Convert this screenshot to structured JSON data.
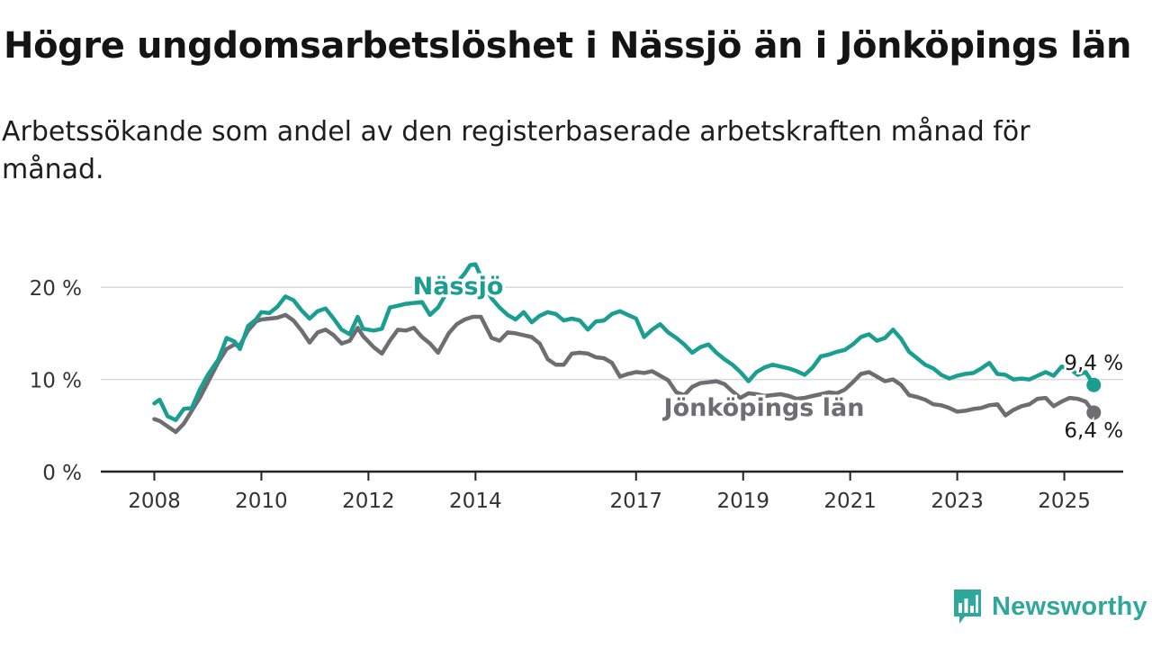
{
  "chart_data": {
    "type": "line",
    "title": "Högre ungdomsarbetslöshet i Nässjö än i Jönköpings län",
    "subtitle": "Arbetssökande som andel av den registerbaserade arbetskraften månad för månad.",
    "x_ticks": [
      "2008",
      "2010",
      "2012",
      "2014",
      "2017",
      "2019",
      "2021",
      "2023",
      "2025"
    ],
    "y_ticks": [
      "0 %",
      "10 %",
      "20 %"
    ],
    "ylim": [
      0,
      25
    ],
    "xlim": [
      2007.0,
      2026.1
    ],
    "grid": "horizontal",
    "series": [
      {
        "name": "Nässjö",
        "color": "#1a9e92",
        "end_label": "9,4 %",
        "points": [
          [
            2008.0,
            7.4
          ],
          [
            2008.1,
            7.8
          ],
          [
            2008.25,
            6.0
          ],
          [
            2008.4,
            5.6
          ],
          [
            2008.55,
            6.8
          ],
          [
            2008.7,
            6.9
          ],
          [
            2008.85,
            8.9
          ],
          [
            2009.0,
            10.5
          ],
          [
            2009.2,
            12.2
          ],
          [
            2009.35,
            14.5
          ],
          [
            2009.5,
            14.1
          ],
          [
            2009.6,
            13.3
          ],
          [
            2009.75,
            15.8
          ],
          [
            2009.9,
            16.5
          ],
          [
            2010.0,
            17.3
          ],
          [
            2010.15,
            17.2
          ],
          [
            2010.3,
            17.9
          ],
          [
            2010.45,
            19.0
          ],
          [
            2010.6,
            18.6
          ],
          [
            2010.75,
            17.5
          ],
          [
            2010.9,
            16.6
          ],
          [
            2011.05,
            17.4
          ],
          [
            2011.2,
            17.7
          ],
          [
            2011.35,
            16.6
          ],
          [
            2011.5,
            15.4
          ],
          [
            2011.65,
            14.9
          ],
          [
            2011.8,
            16.8
          ],
          [
            2011.9,
            15.5
          ],
          [
            2012.1,
            15.3
          ],
          [
            2012.25,
            15.5
          ],
          [
            2012.4,
            17.8
          ],
          [
            2012.55,
            18.0
          ],
          [
            2012.7,
            18.2
          ],
          [
            2012.85,
            18.3
          ],
          [
            2013.0,
            18.4
          ],
          [
            2013.15,
            17.0
          ],
          [
            2013.3,
            17.8
          ],
          [
            2013.5,
            19.8
          ],
          [
            2013.65,
            20.5
          ],
          [
            2013.8,
            21.5
          ],
          [
            2013.9,
            22.4
          ],
          [
            2014.0,
            22.5
          ],
          [
            2014.15,
            20.5
          ],
          [
            2014.3,
            18.8
          ],
          [
            2014.45,
            17.8
          ],
          [
            2014.6,
            17.0
          ],
          [
            2014.75,
            16.5
          ],
          [
            2014.9,
            17.3
          ],
          [
            2015.05,
            16.2
          ],
          [
            2015.2,
            16.9
          ],
          [
            2015.35,
            17.3
          ],
          [
            2015.5,
            17.1
          ],
          [
            2015.65,
            16.4
          ],
          [
            2015.8,
            16.6
          ],
          [
            2015.95,
            16.4
          ],
          [
            2016.1,
            15.4
          ],
          [
            2016.25,
            16.3
          ],
          [
            2016.4,
            16.4
          ],
          [
            2016.55,
            17.1
          ],
          [
            2016.7,
            17.4
          ],
          [
            2016.85,
            17.0
          ],
          [
            2017.0,
            16.6
          ],
          [
            2017.15,
            14.6
          ],
          [
            2017.3,
            15.4
          ],
          [
            2017.45,
            16.0
          ],
          [
            2017.6,
            15.1
          ],
          [
            2017.75,
            14.5
          ],
          [
            2017.9,
            13.8
          ],
          [
            2018.05,
            12.9
          ],
          [
            2018.2,
            13.5
          ],
          [
            2018.35,
            13.8
          ],
          [
            2018.5,
            12.9
          ],
          [
            2018.65,
            12.2
          ],
          [
            2018.8,
            11.6
          ],
          [
            2018.95,
            10.8
          ],
          [
            2019.1,
            9.8
          ],
          [
            2019.25,
            10.8
          ],
          [
            2019.4,
            11.3
          ],
          [
            2019.55,
            11.6
          ],
          [
            2019.7,
            11.4
          ],
          [
            2019.85,
            11.2
          ],
          [
            2020.0,
            10.9
          ],
          [
            2020.15,
            10.5
          ],
          [
            2020.3,
            11.3
          ],
          [
            2020.45,
            12.5
          ],
          [
            2020.6,
            12.7
          ],
          [
            2020.75,
            13.0
          ],
          [
            2020.9,
            13.2
          ],
          [
            2021.05,
            13.8
          ],
          [
            2021.2,
            14.6
          ],
          [
            2021.35,
            14.9
          ],
          [
            2021.5,
            14.2
          ],
          [
            2021.65,
            14.5
          ],
          [
            2021.8,
            15.4
          ],
          [
            2021.95,
            14.4
          ],
          [
            2022.1,
            13.0
          ],
          [
            2022.25,
            12.3
          ],
          [
            2022.4,
            11.6
          ],
          [
            2022.55,
            11.2
          ],
          [
            2022.7,
            10.5
          ],
          [
            2022.85,
            10.1
          ],
          [
            2023.0,
            10.4
          ],
          [
            2023.15,
            10.6
          ],
          [
            2023.3,
            10.7
          ],
          [
            2023.45,
            11.2
          ],
          [
            2023.6,
            11.8
          ],
          [
            2023.75,
            10.6
          ],
          [
            2023.9,
            10.5
          ],
          [
            2024.05,
            10.0
          ],
          [
            2024.2,
            10.1
          ],
          [
            2024.35,
            10.0
          ],
          [
            2024.5,
            10.4
          ],
          [
            2024.65,
            10.8
          ],
          [
            2024.8,
            10.4
          ],
          [
            2024.95,
            11.4
          ],
          [
            2025.1,
            11.2
          ],
          [
            2025.25,
            10.5
          ],
          [
            2025.4,
            10.8
          ],
          [
            2025.55,
            9.4
          ]
        ]
      },
      {
        "name": "Jönköpings län",
        "color": "#6e6e72",
        "end_label": "6,4 %",
        "points": [
          [
            2008.0,
            5.7
          ],
          [
            2008.1,
            5.5
          ],
          [
            2008.25,
            4.9
          ],
          [
            2008.4,
            4.3
          ],
          [
            2008.55,
            5.2
          ],
          [
            2008.7,
            6.6
          ],
          [
            2008.85,
            8.0
          ],
          [
            2009.0,
            9.7
          ],
          [
            2009.2,
            11.9
          ],
          [
            2009.35,
            13.3
          ],
          [
            2009.5,
            13.8
          ],
          [
            2009.6,
            13.7
          ],
          [
            2009.75,
            15.3
          ],
          [
            2009.9,
            16.3
          ],
          [
            2010.0,
            16.5
          ],
          [
            2010.15,
            16.6
          ],
          [
            2010.3,
            16.7
          ],
          [
            2010.45,
            17.0
          ],
          [
            2010.6,
            16.4
          ],
          [
            2010.75,
            15.3
          ],
          [
            2010.9,
            14.0
          ],
          [
            2011.05,
            15.1
          ],
          [
            2011.2,
            15.4
          ],
          [
            2011.35,
            14.8
          ],
          [
            2011.5,
            13.9
          ],
          [
            2011.65,
            14.2
          ],
          [
            2011.8,
            15.6
          ],
          [
            2011.9,
            14.7
          ],
          [
            2012.1,
            13.5
          ],
          [
            2012.25,
            12.8
          ],
          [
            2012.4,
            14.2
          ],
          [
            2012.55,
            15.4
          ],
          [
            2012.7,
            15.3
          ],
          [
            2012.85,
            15.6
          ],
          [
            2013.0,
            14.6
          ],
          [
            2013.15,
            13.9
          ],
          [
            2013.3,
            12.9
          ],
          [
            2013.5,
            15.0
          ],
          [
            2013.65,
            16.0
          ],
          [
            2013.8,
            16.5
          ],
          [
            2013.95,
            16.8
          ],
          [
            2014.1,
            16.8
          ],
          [
            2014.3,
            14.5
          ],
          [
            2014.45,
            14.2
          ],
          [
            2014.6,
            15.1
          ],
          [
            2014.75,
            15.0
          ],
          [
            2014.9,
            14.8
          ],
          [
            2015.05,
            14.6
          ],
          [
            2015.2,
            13.9
          ],
          [
            2015.35,
            12.2
          ],
          [
            2015.5,
            11.6
          ],
          [
            2015.65,
            11.6
          ],
          [
            2015.8,
            12.8
          ],
          [
            2015.95,
            12.9
          ],
          [
            2016.1,
            12.8
          ],
          [
            2016.25,
            12.4
          ],
          [
            2016.4,
            12.3
          ],
          [
            2016.55,
            11.8
          ],
          [
            2016.7,
            10.3
          ],
          [
            2016.85,
            10.6
          ],
          [
            2017.0,
            10.8
          ],
          [
            2017.15,
            10.7
          ],
          [
            2017.3,
            10.9
          ],
          [
            2017.45,
            10.4
          ],
          [
            2017.6,
            9.9
          ],
          [
            2017.75,
            8.6
          ],
          [
            2017.9,
            8.3
          ],
          [
            2018.05,
            9.2
          ],
          [
            2018.2,
            9.6
          ],
          [
            2018.35,
            9.7
          ],
          [
            2018.5,
            9.8
          ],
          [
            2018.65,
            9.5
          ],
          [
            2018.8,
            8.7
          ],
          [
            2018.95,
            8.0
          ],
          [
            2019.1,
            8.5
          ],
          [
            2019.25,
            8.4
          ],
          [
            2019.4,
            8.2
          ],
          [
            2019.55,
            8.3
          ],
          [
            2019.7,
            8.4
          ],
          [
            2019.85,
            8.2
          ],
          [
            2020.0,
            7.9
          ],
          [
            2020.15,
            8.0
          ],
          [
            2020.3,
            8.2
          ],
          [
            2020.45,
            8.4
          ],
          [
            2020.6,
            8.6
          ],
          [
            2020.75,
            8.5
          ],
          [
            2020.9,
            8.9
          ],
          [
            2021.05,
            9.7
          ],
          [
            2021.2,
            10.6
          ],
          [
            2021.35,
            10.8
          ],
          [
            2021.5,
            10.3
          ],
          [
            2021.65,
            9.8
          ],
          [
            2021.8,
            10.0
          ],
          [
            2021.95,
            9.4
          ],
          [
            2022.1,
            8.3
          ],
          [
            2022.25,
            8.1
          ],
          [
            2022.4,
            7.8
          ],
          [
            2022.55,
            7.3
          ],
          [
            2022.7,
            7.2
          ],
          [
            2022.85,
            6.9
          ],
          [
            2023.0,
            6.5
          ],
          [
            2023.15,
            6.6
          ],
          [
            2023.3,
            6.8
          ],
          [
            2023.45,
            6.9
          ],
          [
            2023.6,
            7.2
          ],
          [
            2023.75,
            7.3
          ],
          [
            2023.9,
            6.1
          ],
          [
            2024.05,
            6.7
          ],
          [
            2024.2,
            7.1
          ],
          [
            2024.35,
            7.3
          ],
          [
            2024.5,
            7.9
          ],
          [
            2024.65,
            8.0
          ],
          [
            2024.8,
            7.1
          ],
          [
            2024.95,
            7.6
          ],
          [
            2025.1,
            8.0
          ],
          [
            2025.25,
            7.9
          ],
          [
            2025.4,
            7.6
          ],
          [
            2025.55,
            6.4
          ]
        ]
      }
    ]
  },
  "brand": {
    "name": "Newsworthy",
    "icon": "bar-chart-speech-icon"
  }
}
